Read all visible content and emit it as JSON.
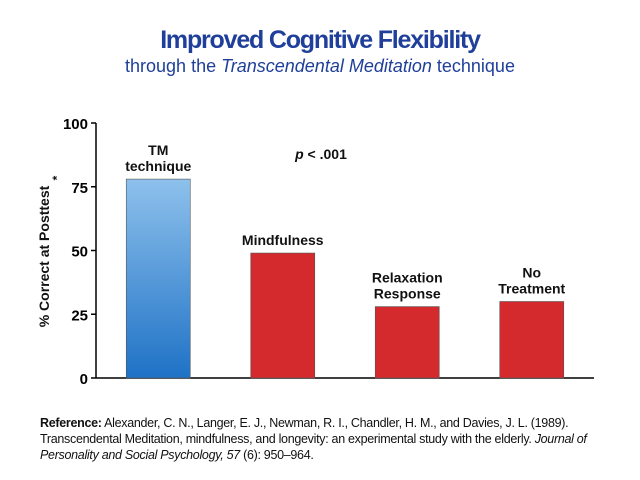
{
  "title": "Improved Cognitive Flexibility",
  "subtitle": {
    "before": "through the ",
    "italic": "Transcendental Meditation",
    "after": " technique"
  },
  "chart_data": {
    "type": "bar",
    "categories": [
      [
        "TM",
        "technique"
      ],
      [
        "Mindfulness"
      ],
      [
        "Relaxation",
        "Response"
      ],
      [
        "No",
        "Treatment"
      ]
    ],
    "values": [
      78,
      49,
      28,
      30
    ],
    "bar_colors": [
      "#2a7fd0",
      "#d42a2e",
      "#d42a2e",
      "#d42a2e"
    ],
    "ylabel": "% Correct at Posttest",
    "ylabel_mark": "*",
    "yticks": [
      0,
      25,
      50,
      75,
      100
    ],
    "ylim": [
      0,
      100
    ],
    "annotation": "p < .001",
    "grid": false
  },
  "reference": {
    "label": "Reference:",
    "text1": " Alexander, C. N., Langer, E. J., Newman, R. I., Chandler, H. M., and Davies, J. L. (1989). Transcendental Meditation, mindfulness, and longevity: an experimental study with the elderly. ",
    "journal": "Journal of Personality and Social Psychology, 57",
    "text2": " (6): 950–964."
  }
}
